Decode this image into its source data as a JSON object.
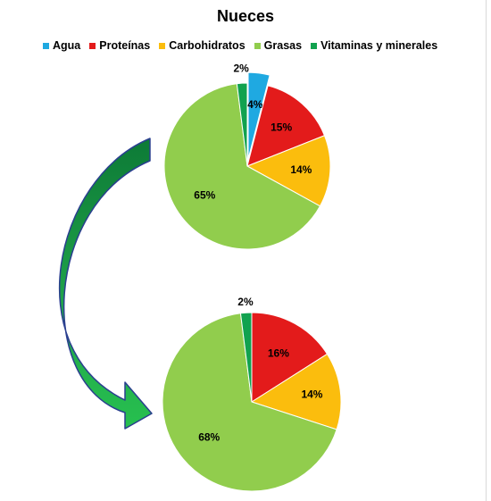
{
  "chart_data": {
    "type": "pie",
    "title": "Nueces",
    "legend": {
      "placement": "top",
      "entries": [
        {
          "name": "Agua",
          "color": "#1fa9e1"
        },
        {
          "name": "Proteínas",
          "color": "#e31b1b"
        },
        {
          "name": "Carbohidratos",
          "color": "#fbbd0d"
        },
        {
          "name": "Grasas",
          "color": "#91cd4d"
        },
        {
          "name": "Vitaminas y minerales",
          "color": "#11a24f"
        }
      ]
    },
    "pies": [
      {
        "slices": [
          {
            "category": "Agua",
            "value": 4,
            "label": "4%",
            "color": "#1fa9e1",
            "exploded": true
          },
          {
            "category": "Proteínas",
            "value": 15,
            "label": "15%",
            "color": "#e31b1b"
          },
          {
            "category": "Carbohidratos",
            "value": 14,
            "label": "14%",
            "color": "#fbbd0d"
          },
          {
            "category": "Grasas",
            "value": 65,
            "label": "65%",
            "color": "#91cd4d"
          },
          {
            "category": "Vitaminas y minerales",
            "value": 2,
            "label": "2%",
            "color": "#11a24f"
          }
        ]
      },
      {
        "slices": [
          {
            "category": "Proteínas",
            "value": 16,
            "label": "16%",
            "color": "#e31b1b"
          },
          {
            "category": "Carbohidratos",
            "value": 14,
            "label": "14%",
            "color": "#fbbd0d"
          },
          {
            "category": "Grasas",
            "value": 68,
            "label": "68%",
            "color": "#91cd4d"
          },
          {
            "category": "Vitaminas y minerales",
            "value": 2,
            "label": "2%",
            "color": "#11a24f"
          }
        ]
      }
    ]
  }
}
